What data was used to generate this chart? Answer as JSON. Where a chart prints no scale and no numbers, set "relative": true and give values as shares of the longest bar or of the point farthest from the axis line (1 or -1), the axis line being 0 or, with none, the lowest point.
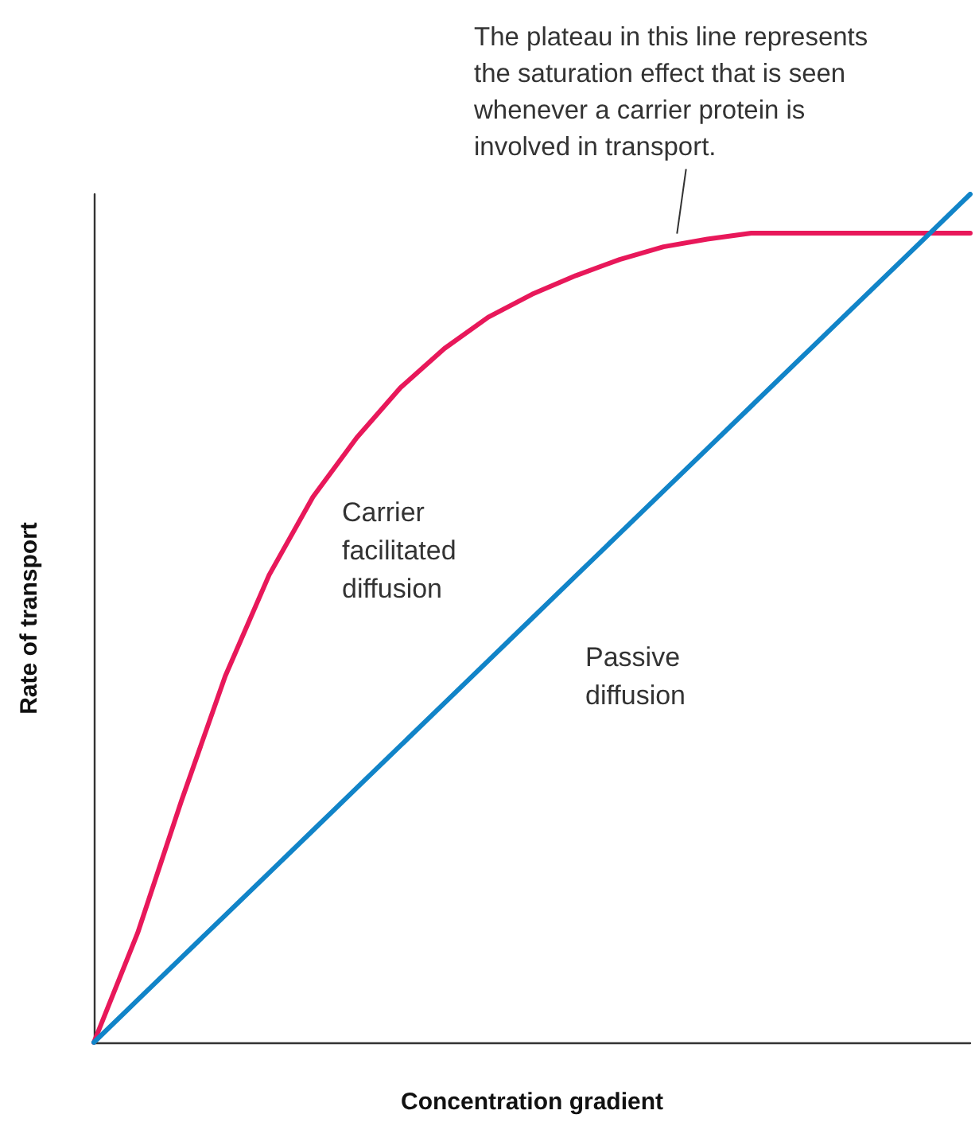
{
  "chart_data": {
    "type": "line",
    "relative": true,
    "xlabel": "Concentration gradient",
    "ylabel": "Rate of transport",
    "annotations": [
      "The plateau in this line represents the saturation effect that is seen whenever a carrier protein is involved in transport."
    ],
    "categories": [
      null,
      null,
      null,
      null,
      null,
      null,
      null,
      null,
      null,
      null,
      null,
      null,
      null,
      null,
      null,
      null,
      null,
      null,
      null,
      null,
      null
    ],
    "series": [
      {
        "name": "Carrier facilitated diffusion",
        "color": "#e8185a",
        "values": [
          0,
          0.129,
          0.285,
          0.432,
          0.551,
          0.643,
          0.713,
          0.772,
          0.818,
          0.855,
          0.882,
          0.904,
          0.923,
          0.938,
          0.947,
          0.954,
          0.954,
          0.954,
          0.954,
          0.954,
          0.954
        ]
      },
      {
        "name": "Passive diffusion",
        "color": "#1184c8",
        "values": [
          0,
          0.05,
          0.1,
          0.15,
          0.2,
          0.25,
          0.3,
          0.35,
          0.4,
          0.45,
          0.5,
          0.55,
          0.6,
          0.65,
          0.7,
          0.75,
          0.8,
          0.85,
          0.9,
          0.95,
          1
        ]
      }
    ],
    "marker": "none",
    "grid": false,
    "legend": false
  }
}
